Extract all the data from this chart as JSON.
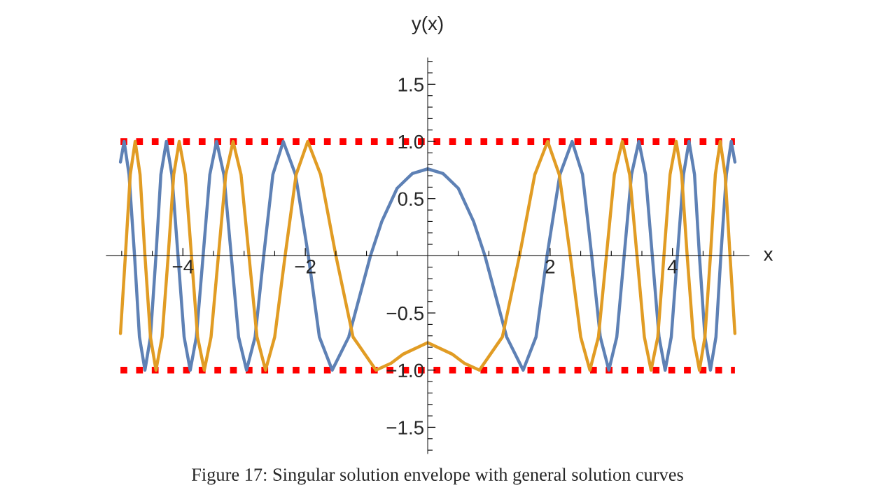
{
  "chart_data": {
    "type": "line",
    "xlabel": "x",
    "ylabel": "y(x)",
    "annotations": [
      "Figure 17: Singular solution envelope with general solution curves"
    ],
    "xlim": [
      -5.25,
      5.25
    ],
    "ylim": [
      -1.73,
      1.73
    ],
    "xticks": [
      {
        "value": -5,
        "label": null
      },
      {
        "value": -4.5,
        "label": null
      },
      {
        "value": -4,
        "label": "−4"
      },
      {
        "value": -3.5,
        "label": null
      },
      {
        "value": -3,
        "label": null
      },
      {
        "value": -2.5,
        "label": null
      },
      {
        "value": -2,
        "label": "−2"
      },
      {
        "value": -1.5,
        "label": null
      },
      {
        "value": -1,
        "label": null
      },
      {
        "value": -0.5,
        "label": null
      },
      {
        "value": 0.5,
        "label": null
      },
      {
        "value": 1,
        "label": null
      },
      {
        "value": 1.5,
        "label": null
      },
      {
        "value": 2,
        "label": "2"
      },
      {
        "value": 2.5,
        "label": null
      },
      {
        "value": 3,
        "label": null
      },
      {
        "value": 3.5,
        "label": null
      },
      {
        "value": 4,
        "label": "4"
      },
      {
        "value": 4.5,
        "label": null
      },
      {
        "value": 5,
        "label": null
      }
    ],
    "yticks": [
      {
        "value": -1.7,
        "label": null
      },
      {
        "value": -1.6,
        "label": null
      },
      {
        "value": -1.5,
        "label": "−1.5"
      },
      {
        "value": -1.4,
        "label": null
      },
      {
        "value": -1.3,
        "label": null
      },
      {
        "value": -1.2,
        "label": null
      },
      {
        "value": -1.1,
        "label": null
      },
      {
        "value": -1.0,
        "label": "−1.0"
      },
      {
        "value": -0.9,
        "label": null
      },
      {
        "value": -0.8,
        "label": null
      },
      {
        "value": -0.7,
        "label": null
      },
      {
        "value": -0.6,
        "label": null
      },
      {
        "value": -0.5,
        "label": "−0.5"
      },
      {
        "value": -0.4,
        "label": null
      },
      {
        "value": -0.3,
        "label": null
      },
      {
        "value": -0.2,
        "label": null
      },
      {
        "value": -0.1,
        "label": null
      },
      {
        "value": 0.1,
        "label": null
      },
      {
        "value": 0.2,
        "label": null
      },
      {
        "value": 0.3,
        "label": null
      },
      {
        "value": 0.4,
        "label": null
      },
      {
        "value": 0.5,
        "label": "0.5"
      },
      {
        "value": 0.6,
        "label": null
      },
      {
        "value": 0.7,
        "label": null
      },
      {
        "value": 0.8,
        "label": null
      },
      {
        "value": 0.9,
        "label": null
      },
      {
        "value": 1.0,
        "label": "1.0"
      },
      {
        "value": 1.1,
        "label": null
      },
      {
        "value": 1.2,
        "label": null
      },
      {
        "value": 1.3,
        "label": null
      },
      {
        "value": 1.4,
        "label": null
      },
      {
        "value": 1.5,
        "label": "1.5"
      },
      {
        "value": 1.6,
        "label": null
      },
      {
        "value": 1.7,
        "label": null
      }
    ],
    "grid": false,
    "marker": "none",
    "line_style": "solid",
    "ref_lines": [
      {
        "axis": "y",
        "value": 1,
        "color": "#ff0000",
        "line_style": "dotted"
      },
      {
        "axis": "y",
        "value": -1,
        "color": "#ff0000",
        "line_style": "dotted"
      }
    ],
    "series": [
      {
        "color": "#5e81b5",
        "x": [
          -5.02,
          -4.96,
          -4.88,
          -4.79,
          -4.71,
          -4.62,
          -4.53,
          -4.44,
          -4.36,
          -4.27,
          -4.18,
          -4.08,
          -3.98,
          -3.88,
          -3.78,
          -3.67,
          -3.56,
          -3.45,
          -3.33,
          -3.21,
          -3.09,
          -2.96,
          -2.82,
          -2.68,
          -2.53,
          -2.36,
          -2.16,
          -1.95,
          -1.77,
          -1.56,
          -1.29,
          -0.935,
          -0.75,
          -0.5,
          -0.25,
          0,
          0.25,
          0.5,
          0.75,
          0.935,
          1.29,
          1.56,
          1.77,
          1.95,
          2.16,
          2.36,
          2.53,
          2.68,
          2.82,
          2.96,
          3.09,
          3.21,
          3.33,
          3.45,
          3.56,
          3.67,
          3.78,
          3.88,
          3.98,
          4.08,
          4.18,
          4.27,
          4.36,
          4.44,
          4.53,
          4.62,
          4.71,
          4.79,
          4.88,
          4.96,
          5.02
        ],
        "values": [
          0.82,
          1,
          0.71,
          0,
          -0.71,
          -1,
          -0.71,
          0,
          0.71,
          1,
          0.71,
          0,
          -0.71,
          -1,
          -0.71,
          0,
          0.71,
          1,
          0.71,
          0,
          -0.71,
          -1,
          -0.71,
          0,
          0.71,
          1,
          0.71,
          0,
          -0.71,
          -1,
          -0.71,
          0,
          0.3,
          0.59,
          0.72,
          0.76,
          0.72,
          0.59,
          0.3,
          0,
          -0.71,
          -1,
          -0.71,
          0,
          0.71,
          1,
          0.71,
          0,
          -0.71,
          -1,
          -0.71,
          0,
          0.71,
          1,
          0.71,
          0,
          -0.71,
          -1,
          -0.71,
          0,
          0.71,
          1,
          0.71,
          0,
          -0.71,
          -1,
          -0.71,
          0,
          0.71,
          1,
          0.82
        ]
      },
      {
        "color": "#e19c24",
        "x": [
          -5.02,
          -4.94,
          -4.86,
          -4.78,
          -4.7,
          -4.62,
          -4.53,
          -4.44,
          -4.34,
          -4.24,
          -4.15,
          -4.06,
          -3.96,
          -3.86,
          -3.76,
          -3.65,
          -3.54,
          -3.42,
          -3.3,
          -3.18,
          -3.05,
          -2.92,
          -2.79,
          -2.65,
          -2.5,
          -2.33,
          -2.15,
          -1.96,
          -1.75,
          -1.5,
          -1.22,
          -0.845,
          -0.6,
          -0.4,
          0,
          0.4,
          0.6,
          0.845,
          1.22,
          1.5,
          1.75,
          1.96,
          2.15,
          2.33,
          2.5,
          2.65,
          2.79,
          2.92,
          3.05,
          3.18,
          3.3,
          3.42,
          3.54,
          3.65,
          3.76,
          3.86,
          3.96,
          4.06,
          4.15,
          4.24,
          4.34,
          4.44,
          4.53,
          4.62,
          4.7,
          4.78,
          4.86,
          4.94,
          5.02
        ],
        "values": [
          -0.68,
          0,
          0.71,
          1,
          0.71,
          0,
          -0.71,
          -1,
          -0.71,
          0,
          0.71,
          1,
          0.71,
          0,
          -0.71,
          -1,
          -0.71,
          0,
          0.71,
          1,
          0.71,
          0,
          -0.71,
          -1,
          -0.71,
          0,
          0.71,
          1,
          0.71,
          0,
          -0.71,
          -1,
          -0.94,
          -0.86,
          -0.76,
          -0.86,
          -0.94,
          -1,
          -0.71,
          0,
          0.71,
          1,
          0.71,
          0,
          -0.71,
          -1,
          -0.71,
          0,
          0.71,
          1,
          0.71,
          0,
          -0.71,
          -1,
          -0.71,
          0,
          0.71,
          1,
          0.71,
          0,
          -0.71,
          -1,
          -0.71,
          0,
          0.71,
          1,
          0.71,
          0,
          -0.68
        ]
      }
    ]
  }
}
